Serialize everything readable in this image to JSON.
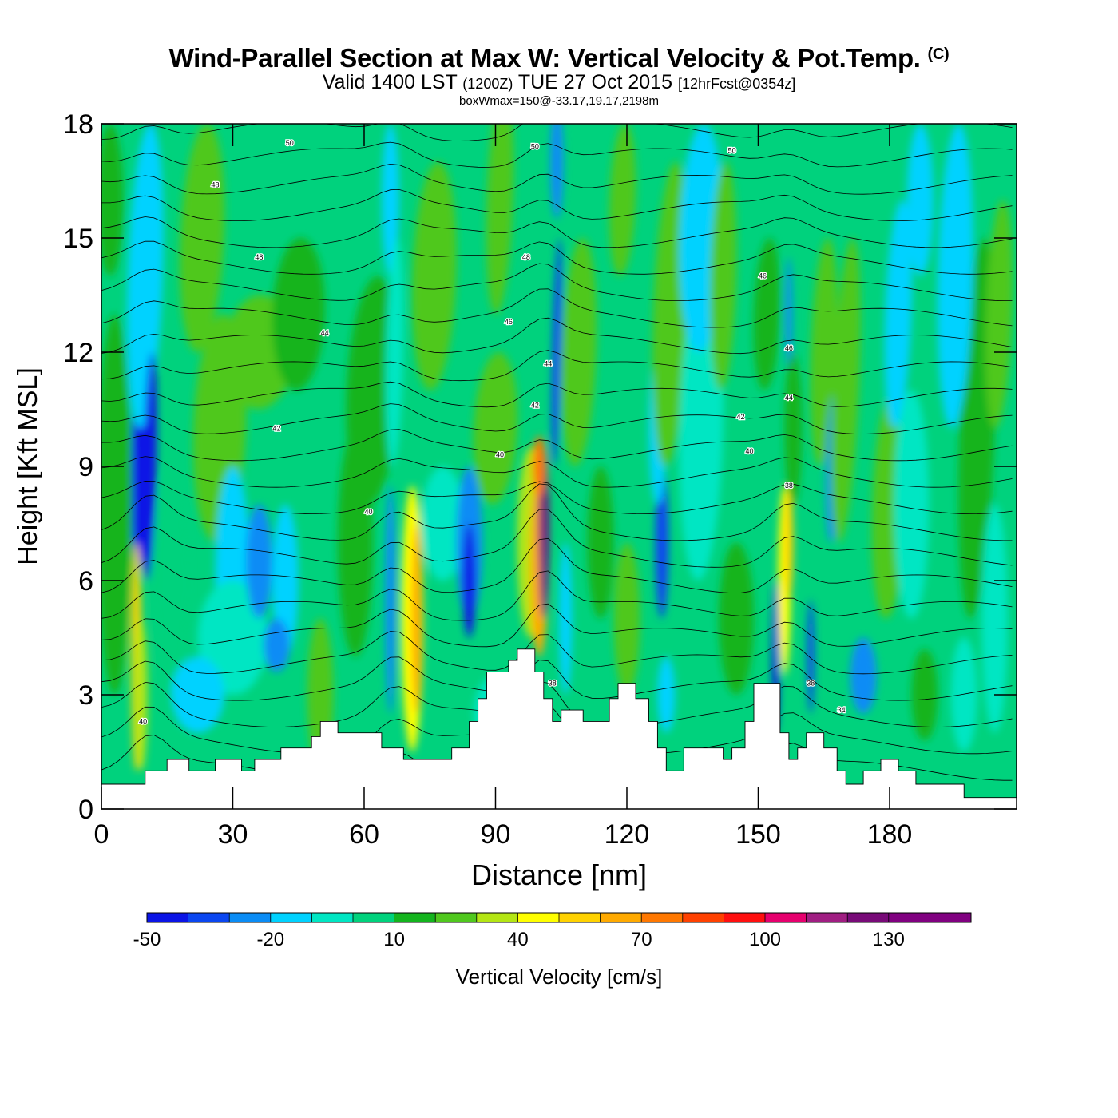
{
  "header": {
    "title_main": "Wind-Parallel Section at Max W: Vertical Velocity & Pot.Temp.",
    "title_mark": "(C)",
    "valid_prefix": "Valid 1400 LST",
    "valid_utc": "(1200Z)",
    "valid_date": "TUE 27 Oct 2015",
    "forecast": "[12hrFcst@0354z]",
    "box_info": "boxWmax=150@-33.17,19.17,2198m"
  },
  "chart_data": {
    "type": "heatmap",
    "xlabel": "Distance [nm]",
    "ylabel": "Height [Kft MSL]",
    "xlim": [
      0,
      209
    ],
    "ylim": [
      0,
      18
    ],
    "x_ticks": [
      0,
      30,
      60,
      90,
      120,
      150,
      180
    ],
    "y_ticks": [
      0,
      3,
      6,
      9,
      12,
      15,
      18
    ],
    "colorbar": {
      "label": "Vertical Velocity [cm/s]",
      "bounds": [
        -50,
        150
      ],
      "step": 10,
      "tick_labels": [
        -50,
        -20,
        10,
        40,
        70,
        100,
        130
      ],
      "colors": [
        "#0a14e6",
        "#0a46f0",
        "#0a8cf5",
        "#00d2ff",
        "#00e6c3",
        "#00d27d",
        "#14b41e",
        "#50c81e",
        "#b4e614",
        "#ffff00",
        "#ffd200",
        "#ffaa00",
        "#ff7800",
        "#ff4100",
        "#ff0f0f",
        "#e6006e",
        "#a01e82",
        "#780a78",
        "#800080",
        "#800080"
      ]
    },
    "terrain_kft": [
      [
        0,
        0.65
      ],
      [
        10,
        0.65
      ],
      [
        10,
        1.0
      ],
      [
        15,
        1.0
      ],
      [
        15,
        1.3
      ],
      [
        20,
        1.3
      ],
      [
        20,
        1.0
      ],
      [
        26,
        1.0
      ],
      [
        26,
        1.3
      ],
      [
        32,
        1.3
      ],
      [
        32,
        1.0
      ],
      [
        35,
        1.0
      ],
      [
        35,
        1.3
      ],
      [
        41,
        1.3
      ],
      [
        41,
        1.6
      ],
      [
        48,
        1.6
      ],
      [
        48,
        1.9
      ],
      [
        50,
        1.9
      ],
      [
        50,
        2.3
      ],
      [
        54,
        2.3
      ],
      [
        54,
        2.0
      ],
      [
        64,
        2.0
      ],
      [
        64,
        1.6
      ],
      [
        69,
        1.6
      ],
      [
        69,
        1.3
      ],
      [
        80,
        1.3
      ],
      [
        80,
        1.6
      ],
      [
        84,
        1.6
      ],
      [
        84,
        2.3
      ],
      [
        86,
        2.3
      ],
      [
        86,
        2.9
      ],
      [
        88,
        2.9
      ],
      [
        88,
        3.6
      ],
      [
        93,
        3.6
      ],
      [
        93,
        3.9
      ],
      [
        95,
        3.9
      ],
      [
        95,
        4.2
      ],
      [
        99,
        4.2
      ],
      [
        99,
        3.6
      ],
      [
        101,
        3.6
      ],
      [
        101,
        2.9
      ],
      [
        103,
        2.9
      ],
      [
        103,
        2.3
      ],
      [
        105,
        2.3
      ],
      [
        105,
        2.6
      ],
      [
        110,
        2.6
      ],
      [
        110,
        2.3
      ],
      [
        116,
        2.3
      ],
      [
        116,
        2.9
      ],
      [
        118,
        2.9
      ],
      [
        118,
        3.3
      ],
      [
        122,
        3.3
      ],
      [
        122,
        2.9
      ],
      [
        125,
        2.9
      ],
      [
        125,
        2.3
      ],
      [
        127,
        2.3
      ],
      [
        127,
        1.6
      ],
      [
        129,
        1.6
      ],
      [
        129,
        1.0
      ],
      [
        133,
        1.0
      ],
      [
        133,
        1.6
      ],
      [
        142,
        1.6
      ],
      [
        142,
        1.3
      ],
      [
        144,
        1.3
      ],
      [
        144,
        1.6
      ],
      [
        147,
        1.6
      ],
      [
        147,
        2.3
      ],
      [
        149,
        2.3
      ],
      [
        149,
        3.3
      ],
      [
        155,
        3.3
      ],
      [
        155,
        2.0
      ],
      [
        157,
        2.0
      ],
      [
        157,
        1.3
      ],
      [
        159,
        1.3
      ],
      [
        159,
        1.6
      ],
      [
        161,
        1.6
      ],
      [
        161,
        2.0
      ],
      [
        165,
        2.0
      ],
      [
        165,
        1.6
      ],
      [
        168,
        1.6
      ],
      [
        168,
        1.0
      ],
      [
        170,
        1.0
      ],
      [
        170,
        0.65
      ],
      [
        174,
        0.65
      ],
      [
        174,
        1.0
      ],
      [
        178,
        1.0
      ],
      [
        178,
        1.3
      ],
      [
        182,
        1.3
      ],
      [
        182,
        1.0
      ],
      [
        186,
        1.0
      ],
      [
        186,
        0.65
      ],
      [
        197,
        0.65
      ],
      [
        197,
        0.3
      ],
      [
        209,
        0.3
      ]
    ],
    "contours": [
      {
        "value": 34,
        "label_at": [
          169,
          2.6
        ]
      },
      {
        "value": 38,
        "label_at": [
          103,
          3.3
        ]
      },
      {
        "value": 38,
        "label_at": [
          162,
          3.3
        ]
      },
      {
        "value": 38,
        "label_at": [
          157,
          8.5
        ]
      },
      {
        "value": 40,
        "label_at": [
          9.5,
          2.3
        ]
      },
      {
        "value": 40,
        "label_at": [
          61,
          7.8
        ]
      },
      {
        "value": 40,
        "label_at": [
          91,
          9.3
        ]
      },
      {
        "value": 40,
        "label_at": [
          148,
          9.4
        ]
      },
      {
        "value": 42,
        "label_at": [
          40,
          10.0
        ]
      },
      {
        "value": 42,
        "label_at": [
          99,
          10.6
        ]
      },
      {
        "value": 42,
        "label_at": [
          146,
          10.3
        ]
      },
      {
        "value": 44,
        "label_at": [
          51,
          12.5
        ]
      },
      {
        "value": 44,
        "label_at": [
          102,
          11.7
        ]
      },
      {
        "value": 44,
        "label_at": [
          157,
          10.8
        ]
      },
      {
        "value": 46,
        "label_at": [
          93,
          12.8
        ]
      },
      {
        "value": 46,
        "label_at": [
          157,
          12.1
        ]
      },
      {
        "value": 46,
        "label_at": [
          151,
          14.0
        ]
      },
      {
        "value": 48,
        "label_at": [
          36,
          14.5
        ]
      },
      {
        "value": 48,
        "label_at": [
          97,
          14.5
        ]
      },
      {
        "value": 48,
        "label_at": [
          26,
          16.4
        ]
      },
      {
        "value": 50,
        "label_at": [
          43,
          17.5
        ]
      },
      {
        "value": 50,
        "label_at": [
          99,
          17.4
        ]
      },
      {
        "value": 50,
        "label_at": [
          144,
          17.3
        ]
      }
    ]
  }
}
